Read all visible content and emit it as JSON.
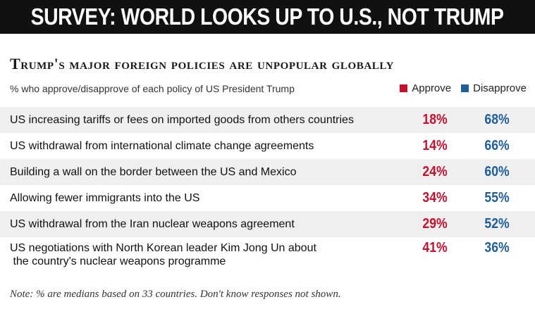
{
  "banner": {
    "text": "SURVEY: WORLD LOOKS UP TO U.S., NOT TRUMP"
  },
  "colors": {
    "approve": "#c8102e",
    "disapprove": "#1f5f99",
    "banner_bg": "#111111"
  },
  "chart_data": {
    "type": "table",
    "title": "Trump's major foreign policies are unpopular globally",
    "subtitle": "% who approve/disapprove  of each policy of US President Trump",
    "legend": [
      {
        "name": "Approve",
        "color": "#c8102e"
      },
      {
        "name": "Disapprove",
        "color": "#1f5f99"
      }
    ],
    "legend_position": "top-right",
    "rows": [
      {
        "label": "US increasing tariffs or fees on imported goods from others countries",
        "approve": "18%",
        "disapprove": "68%"
      },
      {
        "label": "US withdrawal from international climate change agreements",
        "approve": "14%",
        "disapprove": "66%"
      },
      {
        "label": "Building a wall on the border between the US and Mexico",
        "approve": "24%",
        "disapprove": "60%"
      },
      {
        "label": "Allowing fewer immigrants into the US",
        "approve": "34%",
        "disapprove": "55%"
      },
      {
        "label": "US withdrawal from the Iran nuclear weapons agreement",
        "approve": "29%",
        "disapprove": "52%"
      },
      {
        "label": "US negotiations with North Korean leader Kim Jong Un about the country's nuclear weapons programme",
        "label_line1": "US negotiations with North Korean leader Kim Jong Un about",
        "label_line2": " the country's nuclear weapons programme",
        "approve": "41%",
        "disapprove": "36%"
      }
    ],
    "note": "Note: % are medians based on 33 countries. Don't know responses not shown."
  }
}
